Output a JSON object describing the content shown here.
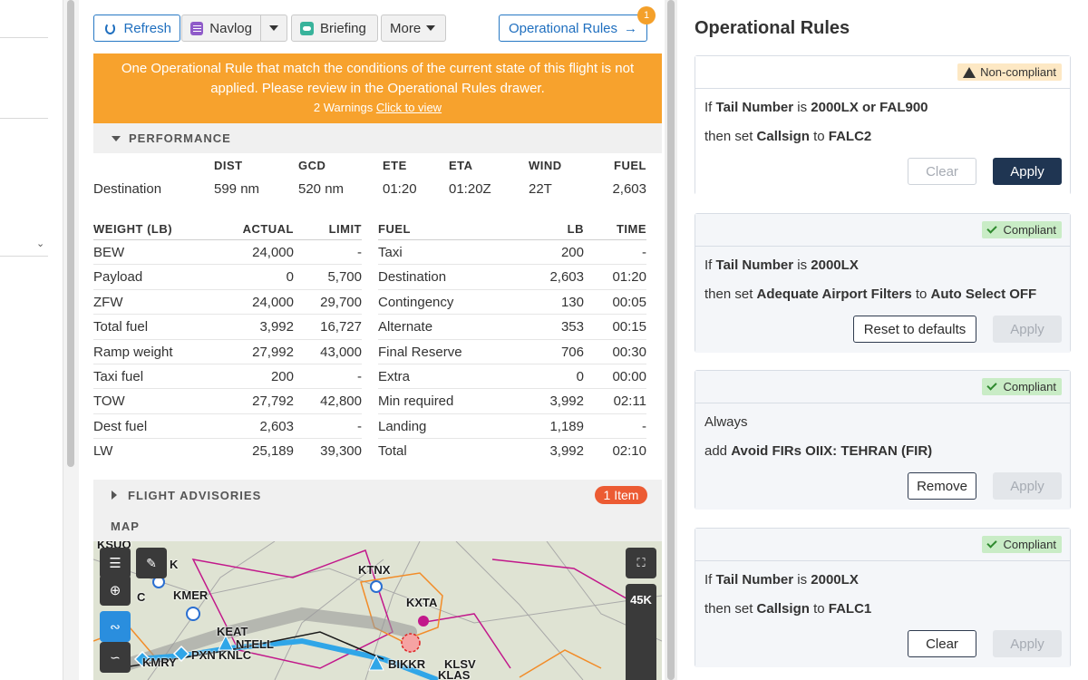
{
  "toolbar": {
    "refresh_label": "Refresh",
    "navlog_label": "Navlog",
    "briefing_label": "Briefing",
    "more_label": "More",
    "oprules_label": "Operational Rules",
    "oprules_arrow": "→",
    "oprules_count": "1"
  },
  "banner": {
    "message": "One Operational Rule that match the conditions of the current state of this flight is not applied. Please review in the Operational Rules drawer.",
    "warnings": "2 Warnings",
    "link": "Click to view"
  },
  "performance": {
    "title": "PERFORMANCE",
    "columns": [
      "DIST",
      "GCD",
      "ETE",
      "ETA",
      "WIND",
      "FUEL"
    ],
    "row": {
      "label": "Destination",
      "values": [
        "599 nm",
        "520 nm",
        "01:20",
        "01:20Z",
        "22T",
        "2,603"
      ]
    }
  },
  "weights": {
    "headers": [
      "WEIGHT (LB)",
      "ACTUAL",
      "LIMIT"
    ],
    "rows": [
      [
        "BEW",
        "24,000",
        "-"
      ],
      [
        "Payload",
        "0",
        "5,700"
      ],
      [
        "ZFW",
        "24,000",
        "29,700"
      ],
      [
        "Total fuel",
        "3,992",
        "16,727"
      ],
      [
        "Ramp weight",
        "27,992",
        "43,000"
      ],
      [
        "Taxi fuel",
        "200",
        "-"
      ],
      [
        "TOW",
        "27,792",
        "42,800"
      ],
      [
        "Dest fuel",
        "2,603",
        "-"
      ],
      [
        "LW",
        "25,189",
        "39,300"
      ]
    ]
  },
  "fuel": {
    "headers": [
      "FUEL",
      "LB",
      "TIME"
    ],
    "rows": [
      [
        "Taxi",
        "200",
        "-"
      ],
      [
        "Destination",
        "2,603",
        "01:20"
      ],
      [
        "Contingency",
        "130",
        "00:05"
      ],
      [
        "Alternate",
        "353",
        "00:15"
      ],
      [
        "Final Reserve",
        "706",
        "00:30"
      ],
      [
        "Extra",
        "0",
        "00:00"
      ],
      [
        "Min required",
        "3,992",
        "02:11"
      ],
      [
        "Landing",
        "1,189",
        "-"
      ],
      [
        "Total",
        "3,992",
        "02:10"
      ]
    ]
  },
  "advisories": {
    "title": "FLIGHT ADVISORIES",
    "badge": "1 Item"
  },
  "map": {
    "title": "MAP",
    "altitude": "45K",
    "labels": [
      "KSUO",
      "K",
      "KMER",
      "KEAT",
      "NTELL",
      "PXN",
      "KMRY",
      "KTNX",
      "KXTA",
      "KLSV",
      "KLAS",
      "BIKKR",
      "C",
      "KNLC"
    ]
  },
  "drawer": {
    "title": "Operational Rules",
    "rules": [
      {
        "status": "Non-compliant",
        "line1": {
          "prefix": "If",
          "field": "Tail Number",
          "op": "is",
          "value": "2000LX or FAL900"
        },
        "line2": {
          "prefix": "then set",
          "field": "Callsign",
          "op": "to",
          "value": "FALC2"
        },
        "secondary": "Clear",
        "primary": "Apply"
      },
      {
        "status": "Compliant",
        "line1": {
          "prefix": "If",
          "field": "Tail Number",
          "op": "is",
          "value": "2000LX"
        },
        "line2": {
          "prefix": "then set",
          "field": "Adequate Airport Filters",
          "op": "to",
          "value": "Auto Select OFF"
        },
        "secondary": "Reset to defaults",
        "primary": "Apply"
      },
      {
        "status": "Compliant",
        "line1": {
          "prefix": "Always"
        },
        "line2": {
          "prefix": "add",
          "field": "Avoid FIRs OIIX: TEHRAN (FIR)"
        },
        "secondary": "Remove",
        "primary": "Apply"
      },
      {
        "status": "Compliant",
        "line1": {
          "prefix": "If",
          "field": "Tail Number",
          "op": "is",
          "value": "2000LX"
        },
        "line2": {
          "prefix": "then set",
          "field": "Callsign",
          "op": "to",
          "value": "FALC1"
        },
        "secondary": "Clear",
        "primary": "Apply"
      }
    ]
  },
  "colors": {
    "accent": "#2778c4",
    "warning": "#f7a22d",
    "primary_button": "#1f3552",
    "badge_red": "#ec5b33"
  }
}
